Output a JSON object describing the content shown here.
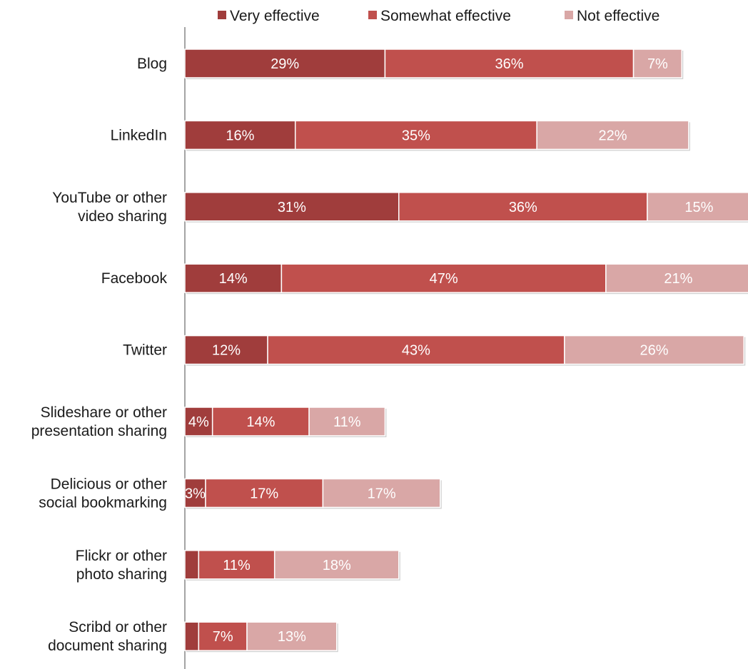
{
  "chart_data": {
    "type": "bar",
    "orientation": "horizontal",
    "stacked": true,
    "title": "",
    "xlabel": "",
    "ylabel": "",
    "legend_position": "top",
    "categories": [
      [
        "Blog"
      ],
      [
        "LinkedIn"
      ],
      [
        "YouTube or other",
        "video sharing"
      ],
      [
        "Facebook"
      ],
      [
        "Twitter"
      ],
      [
        "Slideshare or other",
        "presentation sharing"
      ],
      [
        "Delicious or other",
        "social bookmarking"
      ],
      [
        "Flickr or other",
        "photo sharing"
      ],
      [
        "Scribd or other",
        "document sharing"
      ]
    ],
    "series": [
      {
        "name": "Very effective",
        "color": "#a03d3c",
        "values": [
          29,
          16,
          31,
          14,
          12,
          4,
          3,
          2,
          2
        ],
        "labels": [
          "29%",
          "16%",
          "31%",
          "14%",
          "12%",
          "4%",
          "3%",
          "",
          ""
        ]
      },
      {
        "name": "Somewhat effective",
        "color": "#c0504d",
        "values": [
          36,
          35,
          36,
          47,
          43,
          14,
          17,
          11,
          7
        ],
        "labels": [
          "36%",
          "35%",
          "36%",
          "47%",
          "43%",
          "14%",
          "17%",
          "11%",
          "7%"
        ]
      },
      {
        "name": "Not effective",
        "color": "#d9a7a6",
        "values": [
          7,
          22,
          15,
          21,
          26,
          11,
          17,
          18,
          13
        ],
        "labels": [
          "7%",
          "22%",
          "15%",
          "21%",
          "26%",
          "11%",
          "17%",
          "18%",
          "13%"
        ]
      }
    ],
    "grid": false
  }
}
